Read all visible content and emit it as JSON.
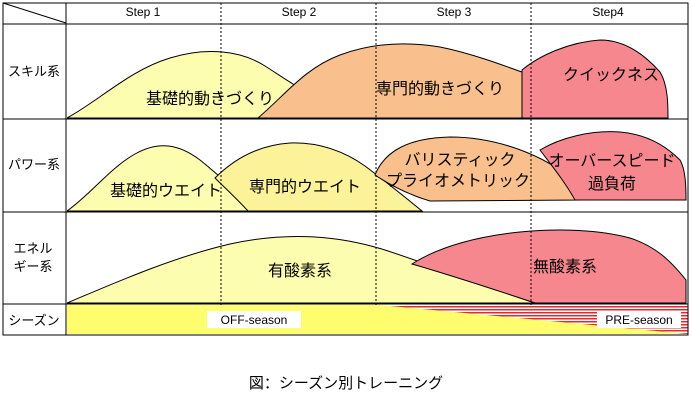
{
  "header": {
    "steps": [
      "Step 1",
      "Step 2",
      "Step 3",
      "Step4"
    ]
  },
  "rows": [
    {
      "label_lines": [
        "スキル系"
      ],
      "phases": [
        {
          "label_lines": [
            "基礎的動きづくり"
          ],
          "color": "#fdfdb0"
        },
        {
          "label_lines": [
            "専門的動きづくり"
          ],
          "color": "#f9bf8c"
        },
        {
          "label_lines": [
            "クイックネス"
          ],
          "color": "#f7878f"
        }
      ]
    },
    {
      "label_lines": [
        "パワー系"
      ],
      "phases": [
        {
          "label_lines": [
            "基礎的ウエイト"
          ],
          "color": "#fdfdb0"
        },
        {
          "label_lines": [
            "専門的ウエイト"
          ],
          "color": "#fbf29a"
        },
        {
          "label_lines": [
            "バリスティック",
            "プライオメトリック"
          ],
          "color": "#f9bf8c"
        },
        {
          "label_lines": [
            "オーバースピード",
            "過負荷"
          ],
          "color": "#f7878f"
        }
      ]
    },
    {
      "label_lines": [
        "エネル",
        "ギー系"
      ],
      "phases": [
        {
          "label_lines": [
            "有酸素系"
          ],
          "color": "#fdfdb0"
        },
        {
          "label_lines": [
            "無酸素系"
          ],
          "color": "#f7878f"
        }
      ]
    },
    {
      "label_lines": [
        "シーズン"
      ],
      "phases": [
        {
          "label_lines": [
            "OFF-season"
          ],
          "color": "#fdfd6e"
        },
        {
          "label_lines": [
            "PRE-season"
          ],
          "color": "#e8262e"
        }
      ]
    }
  ],
  "caption": "図：シーズン別トレーニング"
}
